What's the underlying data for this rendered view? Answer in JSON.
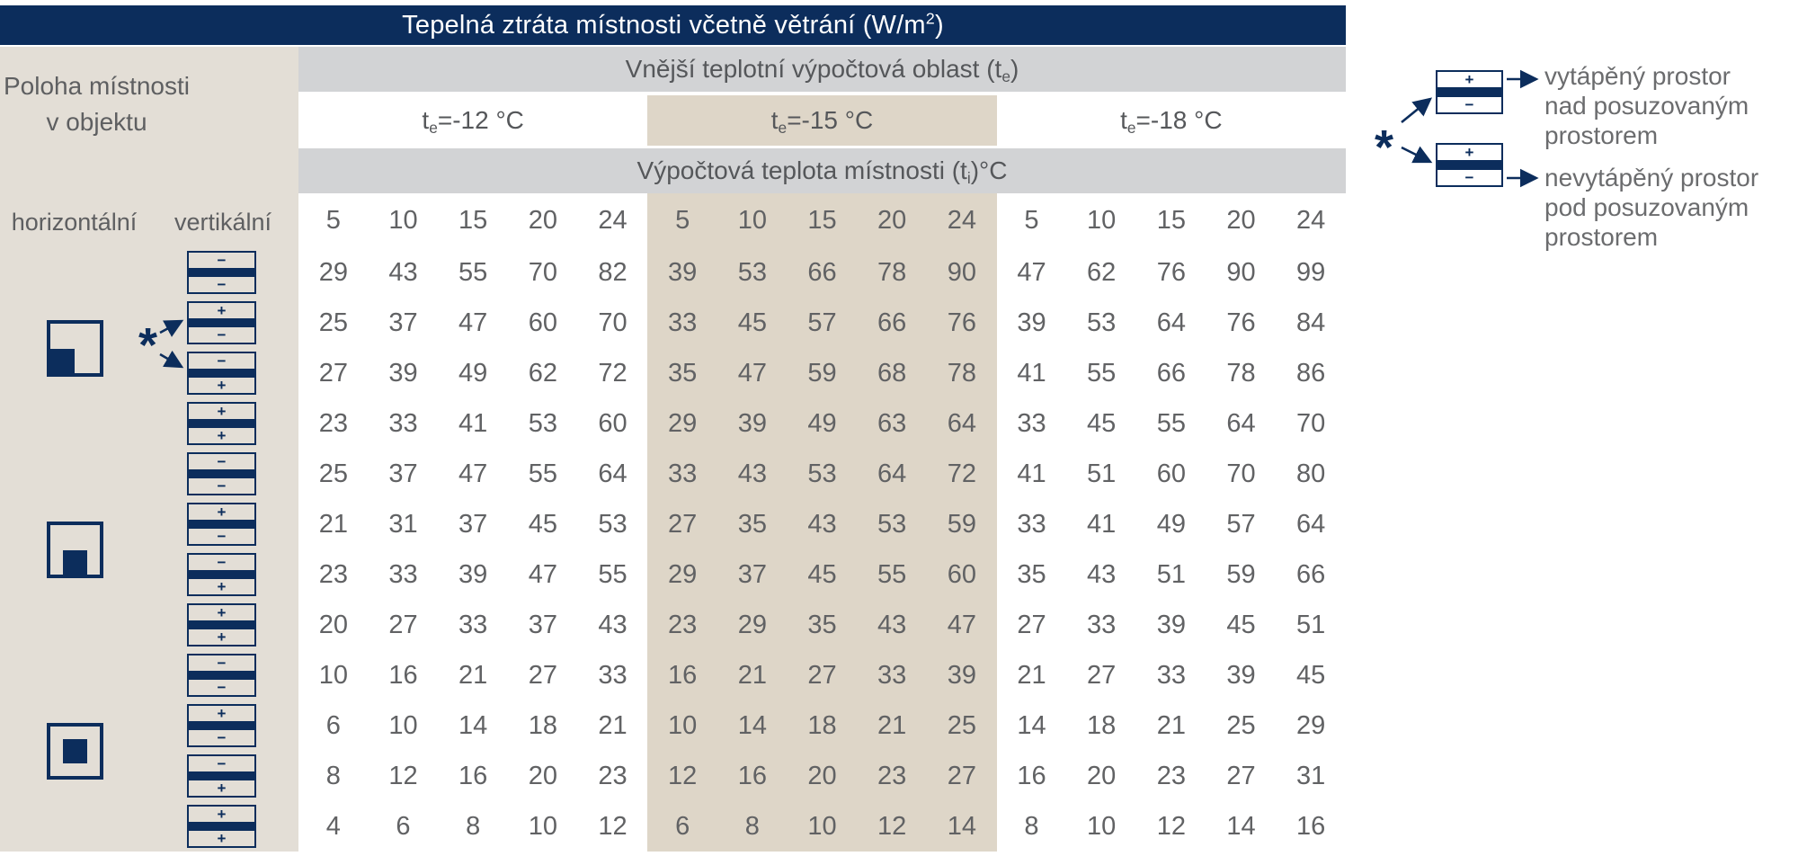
{
  "title": {
    "prefix": "Tepelná ztráta místnosti včetně větrání (W/m",
    "sup": "2",
    "suffix": ")"
  },
  "left_panel": {
    "heading_line1": "Poloha místnosti",
    "heading_line2": "v objektu",
    "horizontal_label": "horizontální",
    "vertical_label": "vertikální",
    "asterisk": "*",
    "room_position_icons": [
      "bottom-left-corner",
      "bottom-edge",
      "interior"
    ]
  },
  "bands": {
    "outer_area": {
      "prefix": "Vnější teplotní výpočtová oblast (t",
      "sub": "e",
      "suffix": ")"
    },
    "room_temp": {
      "prefix": "Výpočtová teplota místnosti (t",
      "sub": "i",
      "suffix": ")°C"
    },
    "te_labels": [
      {
        "prefix": "t",
        "sub": "e",
        "suffix": "=-12 °C"
      },
      {
        "prefix": "t",
        "sub": "e",
        "suffix": "=-15 °C"
      },
      {
        "prefix": "t",
        "sub": "e",
        "suffix": "=-18 °C"
      }
    ]
  },
  "legend": {
    "asterisk": "*",
    "items": [
      {
        "icon_top_sign": "+",
        "icon_bottom_sign": "−",
        "lines": [
          "vytápěný prostor",
          "nad posuzovaným",
          "prostorem"
        ]
      },
      {
        "icon_top_sign": "+",
        "icon_bottom_sign": "−",
        "lines": [
          "nevytápěný prostor",
          "pod posuzovaným",
          "prostorem"
        ]
      }
    ]
  },
  "colors": {
    "navy": "#0c2d5c",
    "panel_beige": "#e3ded6",
    "tan_column": "#ded6c8",
    "band_grey": "#d2d3d5",
    "value_text": "#616264",
    "legend_text": "#6b6c6e"
  },
  "chart_data": {
    "type": "table",
    "title": "Tepelná ztráta místnosti včetně větrání (W/m²)",
    "group_header": "Vnější teplotní výpočtová oblast (te)",
    "subheader": "Výpočtová teplota místnosti (ti)°C",
    "te_groups": [
      "te=-12 °C",
      "te=-15 °C",
      "te=-18 °C"
    ],
    "room_temperatures": [
      5,
      10,
      15,
      20,
      24
    ],
    "rows": [
      {
        "horizontal_position": "bottom-left-corner",
        "top_sign": "−",
        "bottom_sign": "−",
        "values": [
          [
            29,
            43,
            55,
            70,
            82
          ],
          [
            39,
            53,
            66,
            78,
            90
          ],
          [
            47,
            62,
            76,
            90,
            99
          ]
        ]
      },
      {
        "horizontal_position": "bottom-left-corner",
        "top_sign": "+",
        "bottom_sign": "−",
        "values": [
          [
            25,
            37,
            47,
            60,
            70
          ],
          [
            33,
            45,
            57,
            66,
            76
          ],
          [
            39,
            53,
            64,
            76,
            84
          ]
        ]
      },
      {
        "horizontal_position": "bottom-left-corner",
        "top_sign": "−",
        "bottom_sign": "+",
        "values": [
          [
            27,
            39,
            49,
            62,
            72
          ],
          [
            35,
            47,
            59,
            68,
            78
          ],
          [
            41,
            55,
            66,
            78,
            86
          ]
        ]
      },
      {
        "horizontal_position": "bottom-left-corner",
        "top_sign": "+",
        "bottom_sign": "+",
        "values": [
          [
            23,
            33,
            41,
            53,
            60
          ],
          [
            29,
            39,
            49,
            63,
            64
          ],
          [
            33,
            45,
            55,
            64,
            70
          ]
        ]
      },
      {
        "horizontal_position": "bottom-edge",
        "top_sign": "−",
        "bottom_sign": "−",
        "values": [
          [
            25,
            37,
            47,
            55,
            64
          ],
          [
            33,
            43,
            53,
            64,
            72
          ],
          [
            41,
            51,
            60,
            70,
            80
          ]
        ]
      },
      {
        "horizontal_position": "bottom-edge",
        "top_sign": "+",
        "bottom_sign": "−",
        "values": [
          [
            21,
            31,
            37,
            45,
            53
          ],
          [
            27,
            35,
            43,
            53,
            59
          ],
          [
            33,
            41,
            49,
            57,
            64
          ]
        ]
      },
      {
        "horizontal_position": "bottom-edge",
        "top_sign": "−",
        "bottom_sign": "+",
        "values": [
          [
            23,
            33,
            39,
            47,
            55
          ],
          [
            29,
            37,
            45,
            55,
            60
          ],
          [
            35,
            43,
            51,
            59,
            66
          ]
        ]
      },
      {
        "horizontal_position": "bottom-edge",
        "top_sign": "+",
        "bottom_sign": "+",
        "values": [
          [
            20,
            27,
            33,
            37,
            43
          ],
          [
            23,
            29,
            35,
            43,
            47
          ],
          [
            27,
            33,
            39,
            45,
            51
          ]
        ]
      },
      {
        "horizontal_position": "interior",
        "top_sign": "−",
        "bottom_sign": "−",
        "values": [
          [
            10,
            16,
            21,
            27,
            33
          ],
          [
            16,
            21,
            27,
            33,
            39
          ],
          [
            21,
            27,
            33,
            39,
            45
          ]
        ]
      },
      {
        "horizontal_position": "interior",
        "top_sign": "+",
        "bottom_sign": "−",
        "values": [
          [
            6,
            10,
            14,
            18,
            21
          ],
          [
            10,
            14,
            18,
            21,
            25
          ],
          [
            14,
            18,
            21,
            25,
            29
          ]
        ]
      },
      {
        "horizontal_position": "interior",
        "top_sign": "−",
        "bottom_sign": "+",
        "values": [
          [
            8,
            12,
            16,
            20,
            23
          ],
          [
            12,
            16,
            20,
            23,
            27
          ],
          [
            16,
            20,
            23,
            27,
            31
          ]
        ]
      },
      {
        "horizontal_position": "interior",
        "top_sign": "+",
        "bottom_sign": "+",
        "values": [
          [
            4,
            6,
            8,
            10,
            12
          ],
          [
            6,
            8,
            10,
            12,
            14
          ],
          [
            8,
            10,
            12,
            14,
            16
          ]
        ]
      }
    ]
  }
}
